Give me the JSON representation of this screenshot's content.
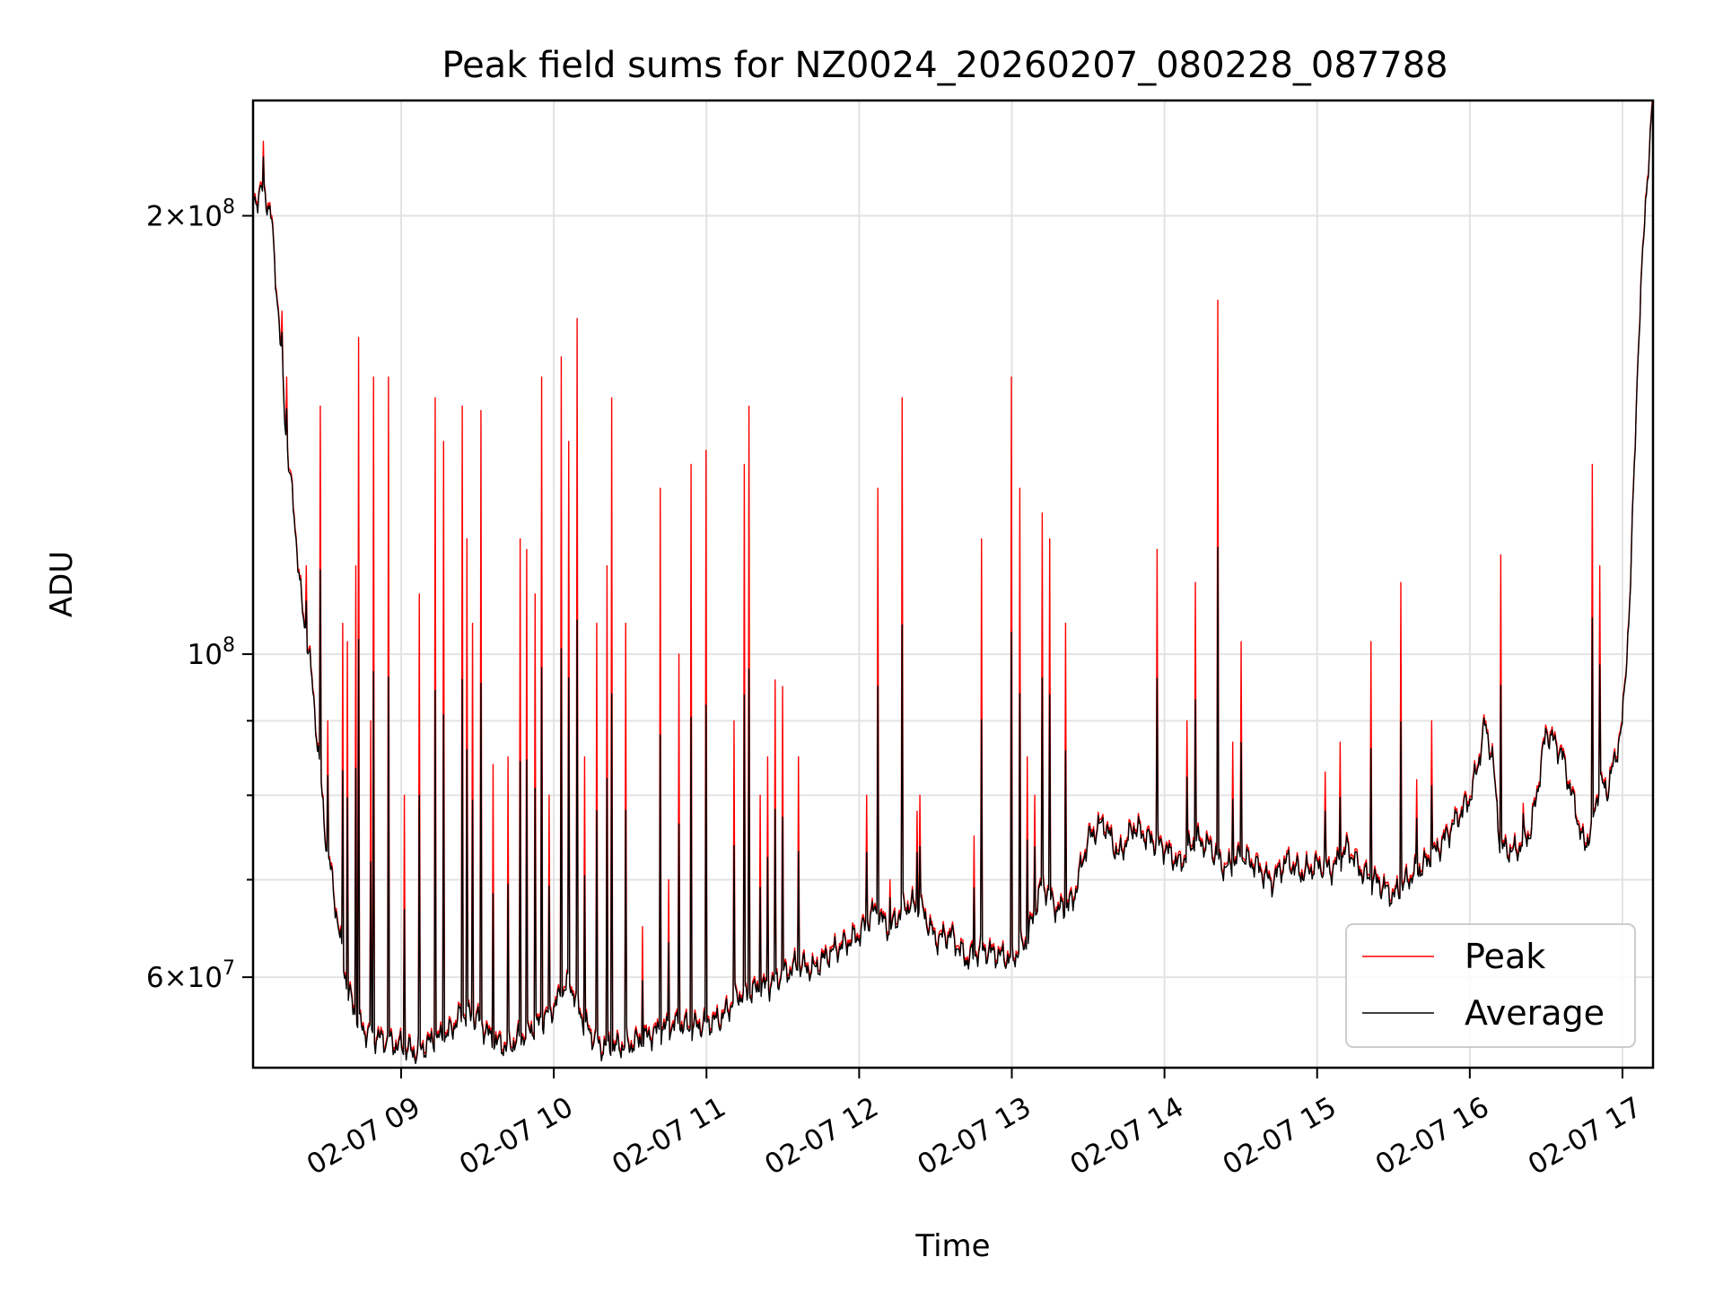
{
  "chart_data": {
    "type": "line",
    "title": "Peak field sums for NZ0024_20260207_080228_087788",
    "xlabel": "Time",
    "ylabel": "ADU",
    "yscale": "log",
    "xlim": [
      8.03,
      17.2
    ],
    "ylim": [
      52000000,
      240000000
    ],
    "x_ticks": [
      {
        "value": 9,
        "label": "02-07 09"
      },
      {
        "value": 10,
        "label": "02-07 10"
      },
      {
        "value": 11,
        "label": "02-07 11"
      },
      {
        "value": 12,
        "label": "02-07 12"
      },
      {
        "value": 13,
        "label": "02-07 13"
      },
      {
        "value": 14,
        "label": "02-07 14"
      },
      {
        "value": 15,
        "label": "02-07 15"
      },
      {
        "value": 16,
        "label": "02-07 16"
      },
      {
        "value": 17,
        "label": "02-07 17"
      }
    ],
    "y_ticks_major": [
      {
        "value": 60000000,
        "base": "6",
        "exp": "7"
      },
      {
        "value": 100000000,
        "base": "",
        "exp": "8"
      },
      {
        "value": 200000000,
        "base": "2",
        "exp": "8"
      }
    ],
    "y_ticks_minor": [
      70000000,
      80000000,
      90000000
    ],
    "legend": {
      "position": "lower-right",
      "entries": [
        "Peak",
        "Average"
      ]
    },
    "series": [
      {
        "name": "Peak",
        "color": "#ff0000",
        "baseline_points": [
          [
            8.03,
            205000000
          ],
          [
            8.1,
            210000000
          ],
          [
            8.15,
            200000000
          ],
          [
            8.2,
            170000000
          ],
          [
            8.25,
            140000000
          ],
          [
            8.3,
            125000000
          ],
          [
            8.35,
            108000000
          ],
          [
            8.4,
            100000000
          ],
          [
            8.45,
            88000000
          ],
          [
            8.5,
            76000000
          ],
          [
            8.55,
            70000000
          ],
          [
            8.6,
            64000000
          ],
          [
            8.65,
            59000000
          ],
          [
            8.7,
            57000000
          ],
          [
            8.75,
            55500000
          ],
          [
            8.8,
            55000000
          ],
          [
            8.9,
            54500000
          ],
          [
            9.0,
            54000000
          ],
          [
            9.1,
            53500000
          ],
          [
            9.2,
            54500000
          ],
          [
            9.3,
            55000000
          ],
          [
            9.4,
            57000000
          ],
          [
            9.5,
            56500000
          ],
          [
            9.6,
            54500000
          ],
          [
            9.7,
            54000000
          ],
          [
            9.8,
            55000000
          ],
          [
            9.9,
            56000000
          ],
          [
            10.0,
            57500000
          ],
          [
            10.1,
            60000000
          ],
          [
            10.2,
            56000000
          ],
          [
            10.3,
            54000000
          ],
          [
            10.4,
            54000000
          ],
          [
            10.5,
            54200000
          ],
          [
            10.6,
            54800000
          ],
          [
            10.7,
            55500000
          ],
          [
            10.8,
            56000000
          ],
          [
            10.9,
            55700000
          ],
          [
            11.0,
            56000000
          ],
          [
            11.1,
            56500000
          ],
          [
            11.2,
            58500000
          ],
          [
            11.3,
            59000000
          ],
          [
            11.4,
            59500000
          ],
          [
            11.5,
            60500000
          ],
          [
            11.6,
            61500000
          ],
          [
            11.7,
            61000000
          ],
          [
            11.8,
            62500000
          ],
          [
            11.9,
            63500000
          ],
          [
            12.0,
            64500000
          ],
          [
            12.1,
            67000000
          ],
          [
            12.2,
            65000000
          ],
          [
            12.3,
            67500000
          ],
          [
            12.4,
            67500000
          ],
          [
            12.5,
            64000000
          ],
          [
            12.6,
            64500000
          ],
          [
            12.7,
            62000000
          ],
          [
            12.8,
            63000000
          ],
          [
            12.9,
            62500000
          ],
          [
            13.0,
            62000000
          ],
          [
            13.1,
            64000000
          ],
          [
            13.2,
            70000000
          ],
          [
            13.3,
            67000000
          ],
          [
            13.4,
            68000000
          ],
          [
            13.5,
            75000000
          ],
          [
            13.6,
            77000000
          ],
          [
            13.7,
            73000000
          ],
          [
            13.8,
            76500000
          ],
          [
            13.9,
            75000000
          ],
          [
            14.0,
            74000000
          ],
          [
            14.1,
            72000000
          ],
          [
            14.2,
            75000000
          ],
          [
            14.3,
            74000000
          ],
          [
            14.4,
            71500000
          ],
          [
            14.5,
            73000000
          ],
          [
            14.6,
            72000000
          ],
          [
            14.7,
            70000000
          ],
          [
            14.8,
            72500000
          ],
          [
            14.9,
            71000000
          ],
          [
            15.0,
            72000000
          ],
          [
            15.1,
            71500000
          ],
          [
            15.2,
            74000000
          ],
          [
            15.3,
            71000000
          ],
          [
            15.4,
            70000000
          ],
          [
            15.5,
            68500000
          ],
          [
            15.6,
            70500000
          ],
          [
            15.7,
            72000000
          ],
          [
            15.8,
            74000000
          ],
          [
            15.9,
            77000000
          ],
          [
            16.0,
            80000000
          ],
          [
            16.05,
            84000000
          ],
          [
            16.1,
            90000000
          ],
          [
            16.15,
            85000000
          ],
          [
            16.2,
            74000000
          ],
          [
            16.3,
            73500000
          ],
          [
            16.4,
            76000000
          ],
          [
            16.45,
            82000000
          ],
          [
            16.5,
            89000000
          ],
          [
            16.6,
            86000000
          ],
          [
            16.7,
            78000000
          ],
          [
            16.75,
            74000000
          ],
          [
            16.8,
            76500000
          ],
          [
            16.85,
            82000000
          ],
          [
            16.9,
            81000000
          ],
          [
            16.95,
            85000000
          ],
          [
            17.0,
            90000000
          ],
          [
            17.05,
            110000000
          ],
          [
            17.1,
            160000000
          ],
          [
            17.15,
            205000000
          ],
          [
            17.2,
            240000000
          ]
        ],
        "spikes": [
          [
            8.1,
            225000000
          ],
          [
            8.22,
            172000000
          ],
          [
            8.25,
            155000000
          ],
          [
            8.28,
            130000000
          ],
          [
            8.38,
            115000000
          ],
          [
            8.47,
            148000000
          ],
          [
            8.52,
            90000000
          ],
          [
            8.62,
            105000000
          ],
          [
            8.65,
            102000000
          ],
          [
            8.7,
            115000000
          ],
          [
            8.72,
            165000000
          ],
          [
            8.8,
            90000000
          ],
          [
            8.82,
            155000000
          ],
          [
            8.92,
            155000000
          ],
          [
            9.02,
            80000000
          ],
          [
            9.12,
            110000000
          ],
          [
            9.22,
            150000000
          ],
          [
            9.28,
            140000000
          ],
          [
            9.4,
            148000000
          ],
          [
            9.43,
            120000000
          ],
          [
            9.47,
            105000000
          ],
          [
            9.52,
            147000000
          ],
          [
            9.6,
            84000000
          ],
          [
            9.7,
            85000000
          ],
          [
            9.78,
            120000000
          ],
          [
            9.82,
            118000000
          ],
          [
            9.88,
            110000000
          ],
          [
            9.92,
            155000000
          ],
          [
            9.97,
            80000000
          ],
          [
            10.05,
            160000000
          ],
          [
            10.1,
            140000000
          ],
          [
            10.15,
            170000000
          ],
          [
            10.2,
            85000000
          ],
          [
            10.28,
            105000000
          ],
          [
            10.35,
            115000000
          ],
          [
            10.38,
            150000000
          ],
          [
            10.47,
            105000000
          ],
          [
            10.58,
            65000000
          ],
          [
            10.7,
            130000000
          ],
          [
            10.75,
            70000000
          ],
          [
            10.82,
            100000000
          ],
          [
            10.9,
            135000000
          ],
          [
            11.0,
            138000000
          ],
          [
            11.18,
            90000000
          ],
          [
            11.25,
            135000000
          ],
          [
            11.28,
            148000000
          ],
          [
            11.35,
            80000000
          ],
          [
            11.4,
            85000000
          ],
          [
            11.45,
            96000000
          ],
          [
            11.5,
            95000000
          ],
          [
            11.6,
            85000000
          ],
          [
            12.05,
            80000000
          ],
          [
            12.12,
            130000000
          ],
          [
            12.2,
            70000000
          ],
          [
            12.28,
            150000000
          ],
          [
            12.38,
            78000000
          ],
          [
            12.4,
            80000000
          ],
          [
            12.75,
            75000000
          ],
          [
            12.8,
            120000000
          ],
          [
            13.0,
            155000000
          ],
          [
            13.05,
            130000000
          ],
          [
            13.1,
            85000000
          ],
          [
            13.15,
            80000000
          ],
          [
            13.2,
            125000000
          ],
          [
            13.25,
            120000000
          ],
          [
            13.35,
            105000000
          ],
          [
            13.95,
            118000000
          ],
          [
            14.15,
            90000000
          ],
          [
            14.2,
            112000000
          ],
          [
            14.3,
            75000000
          ],
          [
            14.35,
            175000000
          ],
          [
            14.45,
            87000000
          ],
          [
            14.5,
            102000000
          ],
          [
            15.05,
            83000000
          ],
          [
            15.15,
            87000000
          ],
          [
            15.35,
            102000000
          ],
          [
            15.55,
            112000000
          ],
          [
            15.65,
            82000000
          ],
          [
            15.75,
            90000000
          ],
          [
            16.2,
            117000000
          ],
          [
            16.35,
            79000000
          ],
          [
            16.8,
            135000000
          ],
          [
            16.85,
            115000000
          ]
        ]
      },
      {
        "name": "Average",
        "color": "#000000",
        "spike_fraction": 0.55
      }
    ]
  }
}
